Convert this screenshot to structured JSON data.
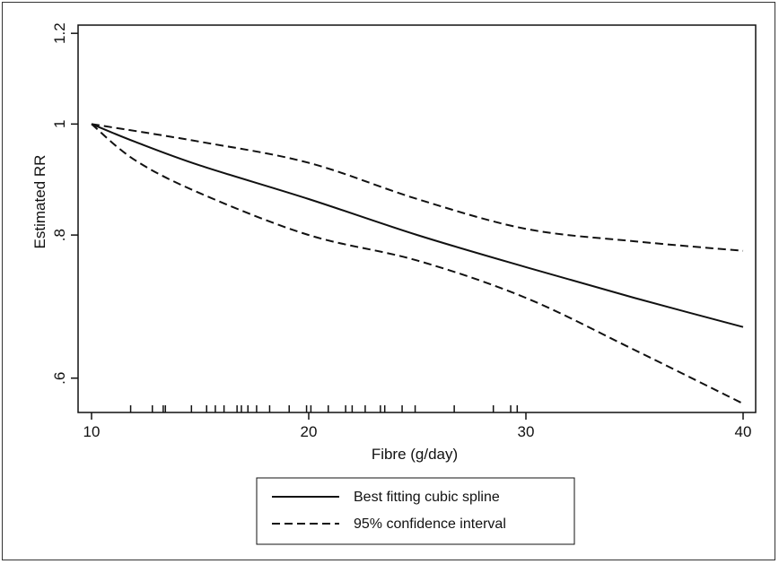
{
  "chart_data": {
    "type": "line",
    "xlabel": "Fibre (g/day)",
    "ylabel": "Estimated RR",
    "x_ticks": [
      10,
      20,
      30,
      40
    ],
    "x_tick_labels": [
      "10",
      "20",
      "30",
      "40"
    ],
    "y_ticks": [
      0.6,
      0.8,
      1.0,
      1.2
    ],
    "y_tick_labels": [
      ".6",
      ".8",
      "1",
      "1.2"
    ],
    "xlim": [
      10,
      40
    ],
    "ylim": [
      0.56,
      1.22
    ],
    "y_scale": "log",
    "grid": false,
    "legend_position": "bottom",
    "series": [
      {
        "name": "Best fitting cubic spline",
        "style": "solid",
        "x": [
          10,
          12,
          15,
          20,
          25,
          30,
          35,
          40
        ],
        "y": [
          1.0,
          0.965,
          0.92,
          0.86,
          0.8,
          0.75,
          0.705,
          0.665
        ]
      },
      {
        "name": "95% confidence interval",
        "style": "dashed",
        "x": [
          10,
          15,
          20,
          25,
          30,
          35,
          40
        ],
        "y": [
          1.0,
          0.965,
          0.925,
          0.86,
          0.81,
          0.79,
          0.775
        ]
      },
      {
        "name": "",
        "style": "dashed",
        "x": [
          10,
          12,
          15,
          20,
          25,
          30,
          35,
          40
        ],
        "y": [
          1.0,
          0.93,
          0.87,
          0.8,
          0.76,
          0.705,
          0.635,
          0.57
        ]
      }
    ],
    "rug_x": [
      11.8,
      12.8,
      13.3,
      13.4,
      14.6,
      15.3,
      15.7,
      16.1,
      16.7,
      16.9,
      17.2,
      17.6,
      18.2,
      19.1,
      19.9,
      20.1,
      20.9,
      21.7,
      22.0,
      22.6,
      23.3,
      23.5,
      24.3,
      24.9,
      26.7,
      28.5,
      29.3,
      29.6
    ]
  }
}
